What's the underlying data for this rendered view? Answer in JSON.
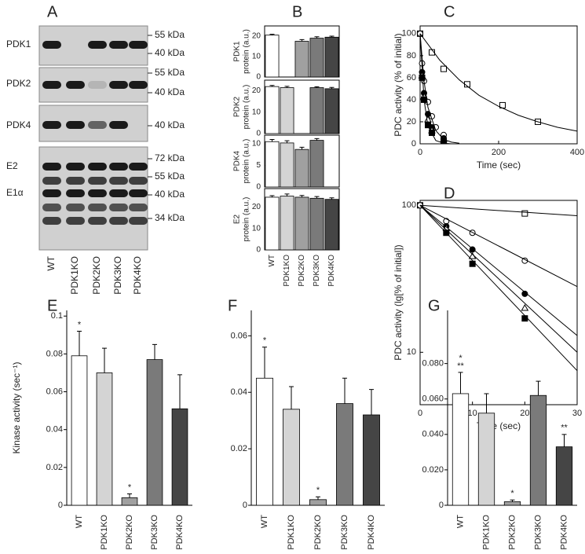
{
  "blot": {
    "label": "A",
    "proteins": [
      "PDK1",
      "PDK2",
      "PDK4",
      "E2",
      "E1α"
    ],
    "markers": [
      "55 kDa",
      "40 kDa",
      "55 kDa",
      "40 kDa",
      "40 kDa",
      "72 kDa",
      "55 kDa",
      "40 kDa",
      "34 kDa"
    ],
    "lanes": [
      "WT",
      "PDK1KO",
      "PDK2KO",
      "PDK3KO",
      "PDK4KO"
    ]
  },
  "chart_data": [
    {
      "type": "bar",
      "label": "B",
      "ylabel": [
        "PDK1",
        "protein (a.u.)"
      ],
      "values": [
        20.5,
        null,
        17.5,
        19,
        19.5
      ],
      "errors": [
        0.4,
        null,
        0.8,
        0.7,
        0.5
      ],
      "colors": [
        "#ffffff",
        "#d4d4d4",
        "#a0a0a0",
        "#7a7a7a",
        "#454545"
      ],
      "ylim": [
        0,
        25
      ],
      "yticks": [
        0,
        10,
        20
      ]
    },
    {
      "type": "bar",
      "ylabel": [
        "PDK2",
        "protein (a.u.)"
      ],
      "values": [
        22,
        21.5,
        null,
        21.5,
        21
      ],
      "errors": [
        0.5,
        0.6,
        null,
        0.4,
        0.6
      ],
      "colors": [
        "#ffffff",
        "#d4d4d4",
        "#a0a0a0",
        "#7a7a7a",
        "#454545"
      ],
      "ylim": [
        0,
        25
      ],
      "yticks": [
        0,
        10,
        20
      ]
    },
    {
      "type": "bar",
      "ylabel": [
        "PDK4",
        "protein (a.u.)"
      ],
      "values": [
        10.5,
        10.2,
        8.7,
        10.8,
        null
      ],
      "errors": [
        0.5,
        0.5,
        0.5,
        0.4,
        null
      ],
      "colors": [
        "#ffffff",
        "#d4d4d4",
        "#a0a0a0",
        "#7a7a7a",
        "#454545"
      ],
      "ylim": [
        0,
        12
      ],
      "yticks": [
        0,
        5,
        10
      ]
    },
    {
      "type": "bar",
      "ylabel": [
        "E2",
        "protein (a.u.)"
      ],
      "categories": [
        "WT",
        "PDK1KO",
        "PDK2KO",
        "PDK3KO",
        "PDK4KO"
      ],
      "values": [
        24.5,
        25,
        24.5,
        24,
        23.5
      ],
      "errors": [
        0.7,
        1.0,
        0.8,
        0.8,
        0.7
      ],
      "colors": [
        "#ffffff",
        "#d4d4d4",
        "#a0a0a0",
        "#7a7a7a",
        "#454545"
      ],
      "ylim": [
        0,
        28.5
      ],
      "yticks": [
        0,
        10,
        20
      ]
    },
    {
      "type": "scatter",
      "label": "C",
      "xlabel": "Time (sec)",
      "ylabel": "PDC activity (% of initial)",
      "xlim": [
        0,
        400
      ],
      "xticks": [
        0,
        200,
        400
      ],
      "ylim": [
        0,
        107
      ],
      "yticks": [
        0,
        20,
        40,
        60,
        80,
        100
      ],
      "series": [
        {
          "marker": "square",
          "color": "#ffffff",
          "x": [
            0,
            30,
            60,
            120,
            210,
            300
          ],
          "values": [
            100,
            83,
            68,
            54,
            35,
            20
          ]
        },
        {
          "marker": "circle",
          "color": "#ffffff",
          "x": [
            0,
            5,
            10,
            20,
            30,
            40,
            60
          ],
          "values": [
            100,
            73,
            57,
            38,
            25,
            15,
            8
          ]
        },
        {
          "marker": "circle",
          "color": "#000000",
          "x": [
            5,
            10,
            20,
            30,
            60
          ],
          "values": [
            65,
            46,
            27,
            15,
            5
          ]
        },
        {
          "marker": "triangle",
          "color": "#ffffff",
          "x": [
            5,
            10,
            20,
            30,
            60
          ],
          "values": [
            62,
            43,
            22,
            12,
            4
          ]
        },
        {
          "marker": "square",
          "color": "#000000",
          "x": [
            5,
            10,
            20,
            30,
            60
          ],
          "values": [
            60,
            40,
            17,
            10,
            3
          ]
        },
        {
          "marker": "none",
          "color": "#000000",
          "x": [
            0,
            50,
            100,
            150,
            200,
            250,
            300,
            350,
            400
          ],
          "values": [
            100,
            76,
            58,
            44,
            34,
            26,
            20,
            15,
            11.5
          ]
        },
        {
          "marker": "none",
          "color": "#000000",
          "x": [
            0,
            10,
            20,
            40,
            60,
            80,
            100
          ],
          "values": [
            100,
            57,
            33,
            12,
            4,
            1.5,
            0.5
          ]
        },
        {
          "marker": "none",
          "color": "#000000",
          "x": [
            0,
            10,
            20,
            40,
            60,
            80,
            100
          ],
          "values": [
            100,
            40,
            16,
            3,
            0.5,
            0,
            0
          ]
        }
      ]
    },
    {
      "type": "scatter",
      "label": "D",
      "xlabel": "Time (sec)",
      "ylabel": "PDC activity (lg[% of initial])",
      "yscale": "log",
      "xlim": [
        0,
        30
      ],
      "xticks": [
        0,
        10,
        20,
        30
      ],
      "ylim": [
        4.4,
        108
      ],
      "yticks": [
        10,
        100
      ],
      "series": [
        {
          "marker": "square",
          "color": "#ffffff",
          "x": [
            0,
            20
          ],
          "values": [
            100,
            88
          ]
        },
        {
          "marker": "circle",
          "color": "#ffffff",
          "x": [
            0,
            5,
            10,
            20
          ],
          "values": [
            100,
            78,
            65,
            42
          ]
        },
        {
          "marker": "circle",
          "color": "#000000",
          "x": [
            5,
            10,
            20
          ],
          "values": [
            72,
            50,
            25
          ]
        },
        {
          "marker": "triangle",
          "color": "#ffffff",
          "x": [
            5,
            10,
            20
          ],
          "values": [
            70,
            45,
            20
          ]
        },
        {
          "marker": "square",
          "color": "#000000",
          "x": [
            5,
            10,
            20
          ],
          "values": [
            65,
            40,
            17
          ]
        },
        {
          "marker": "none",
          "color": "#000000",
          "x": [
            0,
            30
          ],
          "values": [
            100,
            85
          ]
        },
        {
          "marker": "none",
          "color": "#000000",
          "x": [
            0,
            30
          ],
          "values": [
            100,
            28
          ]
        },
        {
          "marker": "none",
          "color": "#000000",
          "x": [
            0,
            30
          ],
          "values": [
            100,
            13
          ]
        },
        {
          "marker": "none",
          "color": "#000000",
          "x": [
            0,
            30
          ],
          "values": [
            100,
            10
          ]
        },
        {
          "marker": "none",
          "color": "#000000",
          "x": [
            0,
            30
          ],
          "values": [
            100,
            7.5
          ]
        }
      ]
    },
    {
      "type": "bar",
      "label": "E",
      "ylabel": "Kinase activity (sec⁻¹)",
      "categories": [
        "WT",
        "PDK1KO",
        "PDK2KO",
        "PDK3KO",
        "PDK4KO"
      ],
      "values": [
        0.079,
        0.07,
        0.004,
        0.077,
        0.051
      ],
      "errors": [
        0.013,
        0.013,
        0.002,
        0.008,
        0.018
      ],
      "annotations": [
        [
          "*"
        ],
        null,
        [
          "*"
        ],
        null,
        null
      ],
      "colors": [
        "#ffffff",
        "#d4d4d4",
        "#a0a0a0",
        "#7a7a7a",
        "#454545"
      ],
      "ylim": [
        0,
        0.103
      ],
      "yticks": [
        0,
        0.02,
        0.04,
        0.06,
        0.08,
        0.1
      ]
    },
    {
      "type": "bar",
      "label": "F",
      "categories": [
        "WT",
        "PDK1KO",
        "PDK2KO",
        "PDK3KO",
        "PDK4KO"
      ],
      "values": [
        0.045,
        0.034,
        0.002,
        0.036,
        0.032
      ],
      "errors": [
        0.011,
        0.008,
        0.001,
        0.009,
        0.009
      ],
      "annotations": [
        [
          "*"
        ],
        null,
        [
          "*"
        ],
        null,
        null
      ],
      "colors": [
        "#ffffff",
        "#d4d4d4",
        "#a0a0a0",
        "#7a7a7a",
        "#454545"
      ],
      "ylim": [
        0,
        0.069
      ],
      "yticks": [
        0,
        0.02,
        0.04,
        0.06
      ]
    },
    {
      "type": "bar",
      "label": "G",
      "categories": [
        "WT",
        "PDK1KO",
        "PDK2KO",
        "PDK3KO",
        "PDK4KO"
      ],
      "values": [
        0.063,
        0.052,
        0.002,
        0.062,
        0.033
      ],
      "errors": [
        0.012,
        0.011,
        0.001,
        0.008,
        0.007
      ],
      "annotations": [
        [
          "*",
          "**"
        ],
        null,
        [
          "*"
        ],
        null,
        [
          "**"
        ]
      ],
      "colors": [
        "#ffffff",
        "#d4d4d4",
        "#a0a0a0",
        "#7a7a7a",
        "#454545"
      ],
      "ylim": [
        0,
        0.11
      ],
      "yticks": [
        0,
        {
          "value": 0.02,
          "label": "0.020"
        },
        {
          "value": 0.04,
          "label": "0.040"
        },
        {
          "value": 0.06,
          "label": "0.060"
        },
        {
          "value": 0.08,
          "label": "0.080"
        }
      ]
    }
  ]
}
